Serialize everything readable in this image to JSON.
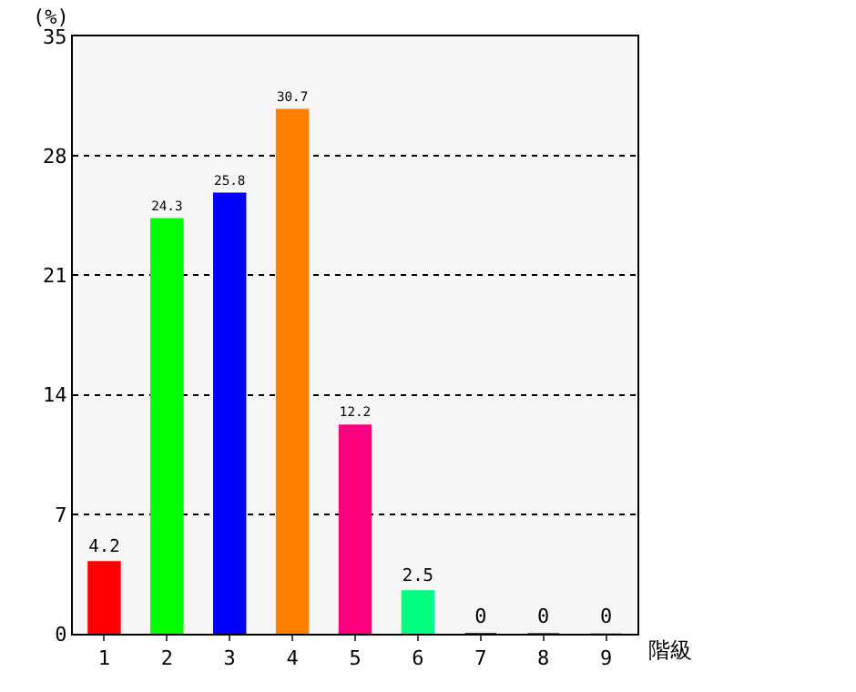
{
  "chart_data": {
    "type": "bar",
    "ylabel": "(%)",
    "xlabel": "階級",
    "categories": [
      "1",
      "2",
      "3",
      "4",
      "5",
      "6",
      "7",
      "8",
      "9"
    ],
    "values": [
      4.2,
      24.3,
      25.8,
      30.7,
      12.2,
      2.5,
      0,
      0,
      0
    ],
    "colors": [
      "#ff0000",
      "#00ff00",
      "#0000ff",
      "#ff8000",
      "#ff0080",
      "#00ff80",
      "#8000ff",
      "#0080ff",
      "#80ff00"
    ],
    "ylim": [
      0,
      35
    ],
    "yticks": [
      0,
      7,
      14,
      21,
      28,
      35
    ],
    "grid": "y",
    "data_labels": true
  }
}
